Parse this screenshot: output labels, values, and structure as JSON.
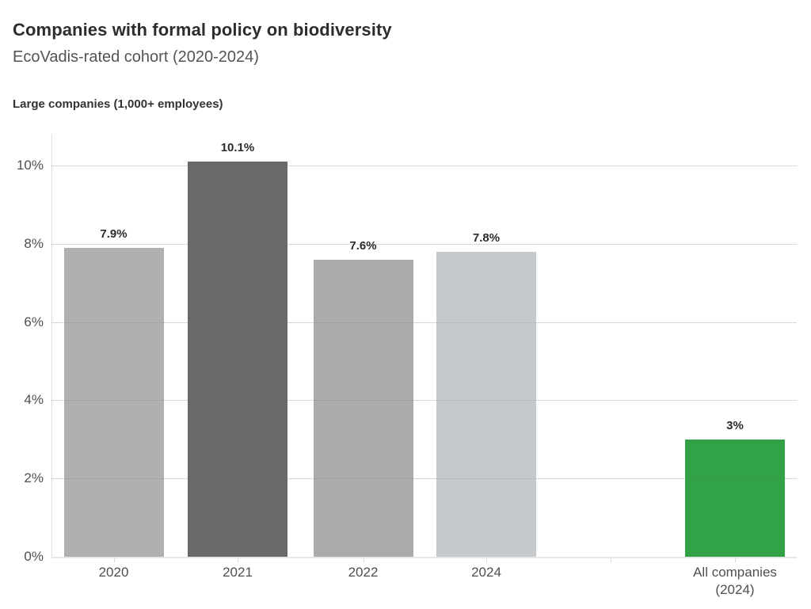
{
  "chart_data": {
    "type": "bar",
    "title": "Companies with formal policy on biodiversity",
    "subtitle": "EcoVadis-rated cohort (2020-2024)",
    "group_label": "Large companies (1,000+ employees)",
    "categories": [
      "2020",
      "2021",
      "2022",
      "2024",
      "All companies (2024)"
    ],
    "values": [
      7.9,
      10.1,
      7.6,
      7.8,
      3
    ],
    "value_labels": [
      "7.9%",
      "10.1%",
      "7.6%",
      "7.8%",
      "3%"
    ],
    "bar_colors": [
      "#b0b0b0",
      "#696969",
      "#ababab",
      "#c6c9cc",
      "#31a346"
    ],
    "gap_after_category_index": 3,
    "xlabel": "",
    "ylabel": "",
    "ylim": [
      0,
      11
    ],
    "yticks": [
      0,
      2,
      4,
      6,
      8,
      10
    ],
    "ytick_labels": [
      "0%",
      "2%",
      "4%",
      "6%",
      "8%",
      "10%"
    ],
    "grid": true,
    "legend": false,
    "colors": {
      "title": "#2d2d2d",
      "subtitle": "#545454",
      "group_label": "#333333",
      "tick_text": "#4f4f4f",
      "value_text": "#2b2b2b",
      "gridline": "#ebebeb",
      "axis_line": "#e0e0e0",
      "highlight_green": "#31a346"
    }
  }
}
